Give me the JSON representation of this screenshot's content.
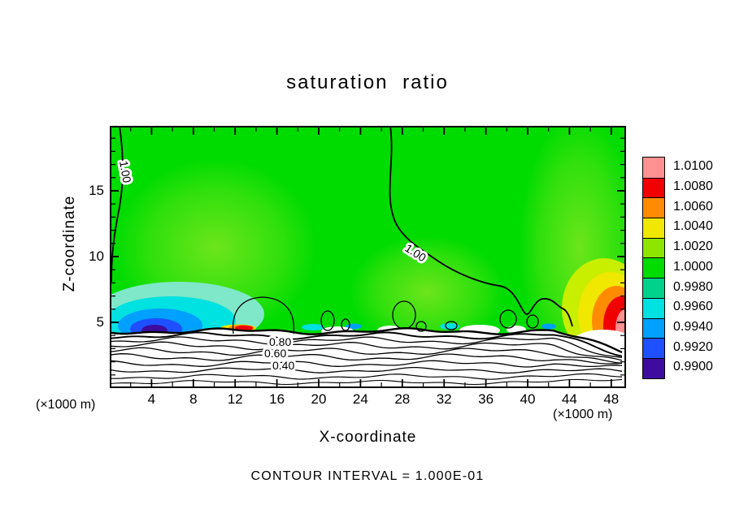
{
  "chart_data": {
    "type": "heatmap",
    "subtype": "filled-contour-plot",
    "title": "saturation ratio",
    "xlabel": "X-coordinate",
    "ylabel": "Z-coordinate",
    "x_unit_left": "(×1000 m)",
    "x_unit_right": "(×1000 m)",
    "annotation": "CONTOUR INTERVAL = 1.000E-01",
    "x_ticks": [
      4,
      8,
      12,
      16,
      20,
      24,
      28,
      32,
      36,
      40,
      44,
      48
    ],
    "y_ticks": [
      5,
      10,
      15
    ],
    "x_range": [
      0,
      49.4
    ],
    "y_range": [
      0,
      20
    ],
    "grid": false,
    "legend_position": "right-colorbar",
    "field_color_at_1": "#00dc00",
    "colorbar": {
      "levels": [
        {
          "value": "1.0100",
          "color": "#ff9191"
        },
        {
          "value": "1.0080",
          "color": "#f00000"
        },
        {
          "value": "1.0060",
          "color": "#ff8c00"
        },
        {
          "value": "1.0040",
          "color": "#f0e800"
        },
        {
          "value": "1.0020",
          "color": "#8ce600"
        },
        {
          "value": "1.0000",
          "color": "#00dc00"
        },
        {
          "value": "0.9980",
          "color": "#00d28c"
        },
        {
          "value": "0.9960",
          "color": "#00e1e1"
        },
        {
          "value": "0.9940",
          "color": "#00a0ff"
        },
        {
          "value": "0.9920",
          "color": "#1e50ff"
        },
        {
          "value": "0.9900",
          "color": "#3d0c9e"
        }
      ]
    },
    "contour_labels": [
      {
        "text": "1.00"
      },
      {
        "text": "1.00"
      },
      {
        "text": "0.80"
      },
      {
        "text": "0.60"
      },
      {
        "text": "0.40"
      }
    ]
  }
}
